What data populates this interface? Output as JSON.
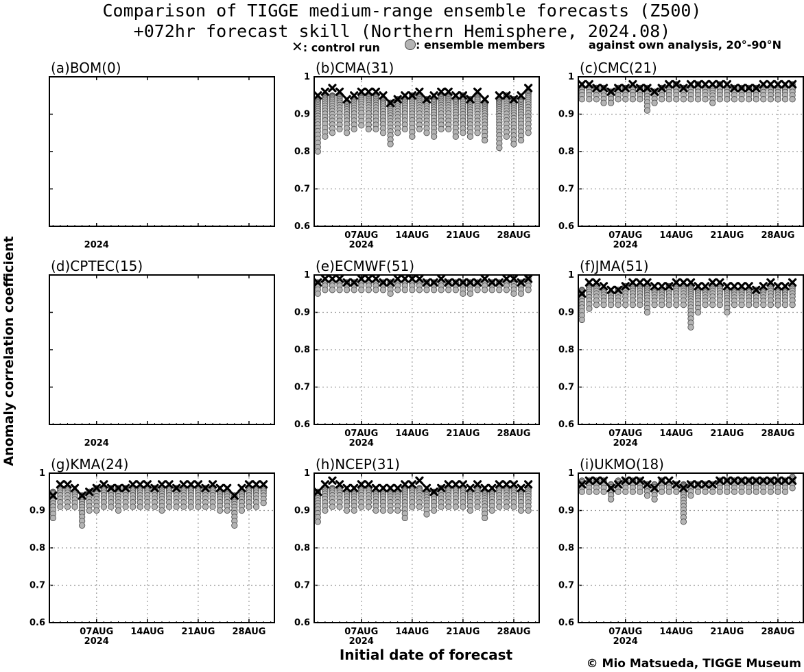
{
  "title_line1": "Comparison of TIGGE medium-range ensemble forecasts (Z500)",
  "title_line2": "+072hr forecast skill (Northern Hemisphere, 2024.08)",
  "legend": {
    "control_marker": "✕",
    "control_label": ": control run",
    "member_label": ": ensemble members"
  },
  "region_note": "against own analysis, 20°-90°N",
  "ylabel": "Anomaly correlation coefficient",
  "xlabel": "Initial date of forecast",
  "credit": "© Mio Matsueda, TIGGE Museum",
  "colors": {
    "member_fill": "#b4b4b4",
    "member_edge": "#555555",
    "control": "#000000",
    "grid": "#9a9a9a"
  },
  "chart_data": [
    {
      "type": "scatter",
      "title": "(a)BOM(0)",
      "ylim": [
        0.6,
        1.0
      ],
      "yticks": [
        "0.6",
        "0.7",
        "0.8",
        "0.9",
        "1"
      ],
      "xticks": [],
      "year_label": "2024",
      "control": [],
      "members": []
    },
    {
      "type": "scatter",
      "title": "(b)CMA(31)",
      "ylim": [
        0.6,
        1.0
      ],
      "yticks": [
        "0.6",
        "0.7",
        "0.8",
        "0.9",
        "1"
      ],
      "xticks": [
        "07AUG",
        "14AUG",
        "21AUG",
        "28AUG"
      ],
      "year_label": "2024",
      "control": [
        0.95,
        0.96,
        0.97,
        0.96,
        0.94,
        0.95,
        0.96,
        0.96,
        0.96,
        0.95,
        0.93,
        0.94,
        0.95,
        0.95,
        0.96,
        0.94,
        0.95,
        0.96,
        0.96,
        0.95,
        0.95,
        0.94,
        0.96,
        0.94,
        null,
        0.95,
        0.95,
        0.94,
        0.95,
        0.97
      ],
      "members": [
        [
          0.8,
          0.94
        ],
        [
          0.84,
          0.95
        ],
        [
          0.85,
          0.95
        ],
        [
          0.86,
          0.95
        ],
        [
          0.85,
          0.93
        ],
        [
          0.86,
          0.94
        ],
        [
          0.87,
          0.95
        ],
        [
          0.86,
          0.95
        ],
        [
          0.86,
          0.95
        ],
        [
          0.85,
          0.94
        ],
        [
          0.82,
          0.93
        ],
        [
          0.85,
          0.94
        ],
        [
          0.86,
          0.94
        ],
        [
          0.84,
          0.95
        ],
        [
          0.86,
          0.95
        ],
        [
          0.85,
          0.94
        ],
        [
          0.84,
          0.94
        ],
        [
          0.86,
          0.95
        ],
        [
          0.86,
          0.95
        ],
        [
          0.84,
          0.94
        ],
        [
          0.85,
          0.95
        ],
        [
          0.84,
          0.94
        ],
        [
          0.85,
          0.95
        ],
        [
          0.83,
          0.93
        ],
        null,
        [
          0.81,
          0.94
        ],
        [
          0.84,
          0.95
        ],
        [
          0.82,
          0.94
        ],
        [
          0.83,
          0.94
        ],
        [
          0.85,
          0.96
        ]
      ]
    },
    {
      "type": "scatter",
      "title": "(c)CMC(21)",
      "ylim": [
        0.6,
        1.0
      ],
      "yticks": [
        "0.6",
        "0.7",
        "0.8",
        "0.9",
        "1"
      ],
      "xticks": [
        "07AUG",
        "14AUG",
        "21AUG",
        "28AUG"
      ],
      "year_label": "2024",
      "control": [
        0.98,
        0.98,
        0.97,
        0.97,
        0.96,
        0.97,
        0.97,
        0.98,
        0.97,
        0.97,
        0.96,
        0.97,
        0.98,
        0.98,
        0.97,
        0.98,
        0.98,
        0.98,
        0.98,
        0.98,
        0.98,
        0.97,
        0.97,
        0.97,
        0.97,
        0.98,
        0.98,
        0.98,
        0.98,
        0.98
      ],
      "members": [
        [
          0.94,
          0.97
        ],
        [
          0.94,
          0.97
        ],
        [
          0.94,
          0.97
        ],
        [
          0.93,
          0.97
        ],
        [
          0.93,
          0.96
        ],
        [
          0.94,
          0.97
        ],
        [
          0.94,
          0.97
        ],
        [
          0.94,
          0.97
        ],
        [
          0.94,
          0.97
        ],
        [
          0.91,
          0.97
        ],
        [
          0.93,
          0.96
        ],
        [
          0.94,
          0.97
        ],
        [
          0.94,
          0.97
        ],
        [
          0.94,
          0.98
        ],
        [
          0.94,
          0.97
        ],
        [
          0.94,
          0.97
        ],
        [
          0.94,
          0.98
        ],
        [
          0.94,
          0.97
        ],
        [
          0.93,
          0.97
        ],
        [
          0.94,
          0.98
        ],
        [
          0.94,
          0.97
        ],
        [
          0.94,
          0.97
        ],
        [
          0.94,
          0.97
        ],
        [
          0.94,
          0.97
        ],
        [
          0.94,
          0.97
        ],
        [
          0.94,
          0.97
        ],
        [
          0.94,
          0.97
        ],
        [
          0.94,
          0.97
        ],
        [
          0.94,
          0.97
        ],
        [
          0.94,
          0.98
        ]
      ]
    },
    {
      "type": "scatter",
      "title": "(d)CPTEC(15)",
      "ylim": [
        0.6,
        1.0
      ],
      "yticks": [
        "0.6",
        "0.7",
        "0.8",
        "0.9",
        "1"
      ],
      "xticks": [],
      "year_label": "2024",
      "control": [],
      "members": []
    },
    {
      "type": "scatter",
      "title": "(e)ECMWF(51)",
      "ylim": [
        0.6,
        1.0
      ],
      "yticks": [
        "0.6",
        "0.7",
        "0.8",
        "0.9",
        "1"
      ],
      "xticks": [
        "07AUG",
        "14AUG",
        "21AUG",
        "28AUG"
      ],
      "year_label": "2024",
      "control": [
        0.98,
        0.99,
        0.99,
        0.99,
        0.98,
        0.98,
        0.99,
        0.99,
        0.99,
        0.98,
        0.98,
        0.99,
        0.99,
        0.99,
        0.99,
        0.98,
        0.98,
        0.99,
        0.98,
        0.98,
        0.98,
        0.98,
        0.98,
        0.99,
        0.98,
        0.98,
        0.99,
        0.99,
        0.98,
        0.99
      ],
      "members": [
        [
          0.95,
          0.98
        ],
        [
          0.96,
          0.98
        ],
        [
          0.96,
          0.98
        ],
        [
          0.96,
          0.98
        ],
        [
          0.96,
          0.98
        ],
        [
          0.96,
          0.98
        ],
        [
          0.96,
          0.98
        ],
        [
          0.96,
          0.98
        ],
        [
          0.96,
          0.98
        ],
        [
          0.96,
          0.98
        ],
        [
          0.95,
          0.98
        ],
        [
          0.96,
          0.98
        ],
        [
          0.96,
          0.98
        ],
        [
          0.96,
          0.98
        ],
        [
          0.96,
          0.98
        ],
        [
          0.96,
          0.98
        ],
        [
          0.96,
          0.98
        ],
        [
          0.96,
          0.98
        ],
        [
          0.96,
          0.98
        ],
        [
          0.96,
          0.98
        ],
        [
          0.95,
          0.98
        ],
        [
          0.95,
          0.98
        ],
        [
          0.96,
          0.98
        ],
        [
          0.96,
          0.98
        ],
        [
          0.96,
          0.98
        ],
        [
          0.96,
          0.98
        ],
        [
          0.96,
          0.98
        ],
        [
          0.95,
          0.98
        ],
        [
          0.95,
          0.98
        ],
        [
          0.96,
          0.99
        ]
      ]
    },
    {
      "type": "scatter",
      "title": "(f)JMA(51)",
      "ylim": [
        0.6,
        1.0
      ],
      "yticks": [
        "0.6",
        "0.7",
        "0.8",
        "0.9",
        "1"
      ],
      "xticks": [
        "07AUG",
        "14AUG",
        "21AUG",
        "28AUG"
      ],
      "year_label": "2024",
      "control": [
        0.95,
        0.98,
        0.98,
        0.97,
        0.96,
        0.96,
        0.97,
        0.98,
        0.98,
        0.98,
        0.97,
        0.97,
        0.97,
        0.98,
        0.98,
        0.98,
        0.97,
        0.97,
        0.98,
        0.98,
        0.97,
        0.97,
        0.97,
        0.97,
        0.96,
        0.97,
        0.98,
        0.97,
        0.97,
        0.98
      ],
      "members": [
        [
          0.88,
          0.96
        ],
        [
          0.91,
          0.97
        ],
        [
          0.92,
          0.97
        ],
        [
          0.92,
          0.96
        ],
        [
          0.92,
          0.95
        ],
        [
          0.92,
          0.96
        ],
        [
          0.92,
          0.97
        ],
        [
          0.92,
          0.97
        ],
        [
          0.92,
          0.97
        ],
        [
          0.9,
          0.97
        ],
        [
          0.92,
          0.96
        ],
        [
          0.92,
          0.96
        ],
        [
          0.92,
          0.97
        ],
        [
          0.92,
          0.97
        ],
        [
          0.92,
          0.97
        ],
        [
          0.86,
          0.97
        ],
        [
          0.9,
          0.96
        ],
        [
          0.92,
          0.96
        ],
        [
          0.92,
          0.97
        ],
        [
          0.92,
          0.97
        ],
        [
          0.9,
          0.96
        ],
        [
          0.92,
          0.96
        ],
        [
          0.92,
          0.96
        ],
        [
          0.92,
          0.96
        ],
        [
          0.92,
          0.96
        ],
        [
          0.92,
          0.96
        ],
        [
          0.92,
          0.97
        ],
        [
          0.92,
          0.96
        ],
        [
          0.92,
          0.96
        ],
        [
          0.92,
          0.97
        ]
      ]
    },
    {
      "type": "scatter",
      "title": "(g)KMA(24)",
      "ylim": [
        0.6,
        1.0
      ],
      "yticks": [
        "0.6",
        "0.7",
        "0.8",
        "0.9",
        "1"
      ],
      "xticks": [
        "07AUG",
        "14AUG",
        "21AUG",
        "28AUG"
      ],
      "year_label": "2024",
      "control": [
        0.94,
        0.97,
        0.97,
        0.96,
        0.94,
        0.95,
        0.96,
        0.97,
        0.96,
        0.96,
        0.96,
        0.97,
        0.97,
        0.97,
        0.96,
        0.97,
        0.97,
        0.96,
        0.97,
        0.97,
        0.97,
        0.96,
        0.97,
        0.96,
        0.96,
        0.94,
        0.96,
        0.97,
        0.97,
        0.97
      ],
      "members": [
        [
          0.88,
          0.95
        ],
        [
          0.91,
          0.96
        ],
        [
          0.91,
          0.96
        ],
        [
          0.91,
          0.95
        ],
        [
          0.86,
          0.94
        ],
        [
          0.9,
          0.95
        ],
        [
          0.9,
          0.96
        ],
        [
          0.91,
          0.96
        ],
        [
          0.91,
          0.96
        ],
        [
          0.9,
          0.96
        ],
        [
          0.91,
          0.96
        ],
        [
          0.91,
          0.96
        ],
        [
          0.91,
          0.96
        ],
        [
          0.91,
          0.96
        ],
        [
          0.91,
          0.96
        ],
        [
          0.9,
          0.96
        ],
        [
          0.91,
          0.96
        ],
        [
          0.91,
          0.96
        ],
        [
          0.91,
          0.96
        ],
        [
          0.91,
          0.96
        ],
        [
          0.91,
          0.96
        ],
        [
          0.91,
          0.96
        ],
        [
          0.91,
          0.96
        ],
        [
          0.9,
          0.95
        ],
        [
          0.9,
          0.95
        ],
        [
          0.86,
          0.94
        ],
        [
          0.9,
          0.95
        ],
        [
          0.91,
          0.96
        ],
        [
          0.91,
          0.96
        ],
        [
          0.92,
          0.96
        ]
      ]
    },
    {
      "type": "scatter",
      "title": "(h)NCEP(31)",
      "ylim": [
        0.6,
        1.0
      ],
      "yticks": [
        "0.6",
        "0.7",
        "0.8",
        "0.9",
        "1"
      ],
      "xticks": [
        "07AUG",
        "14AUG",
        "21AUG",
        "28AUG"
      ],
      "year_label": "2024",
      "control": [
        0.95,
        0.97,
        0.98,
        0.97,
        0.96,
        0.96,
        0.97,
        0.97,
        0.96,
        0.96,
        0.96,
        0.96,
        0.97,
        0.97,
        0.98,
        0.96,
        0.95,
        0.96,
        0.97,
        0.97,
        0.97,
        0.96,
        0.97,
        0.96,
        0.96,
        0.97,
        0.97,
        0.97,
        0.96,
        0.97
      ],
      "members": [
        [
          0.87,
          0.95
        ],
        [
          0.9,
          0.96
        ],
        [
          0.91,
          0.96
        ],
        [
          0.91,
          0.96
        ],
        [
          0.9,
          0.95
        ],
        [
          0.9,
          0.95
        ],
        [
          0.91,
          0.96
        ],
        [
          0.91,
          0.96
        ],
        [
          0.9,
          0.95
        ],
        [
          0.9,
          0.95
        ],
        [
          0.9,
          0.95
        ],
        [
          0.9,
          0.95
        ],
        [
          0.88,
          0.96
        ],
        [
          0.91,
          0.96
        ],
        [
          0.91,
          0.96
        ],
        [
          0.89,
          0.95
        ],
        [
          0.9,
          0.95
        ],
        [
          0.91,
          0.96
        ],
        [
          0.91,
          0.96
        ],
        [
          0.91,
          0.96
        ],
        [
          0.91,
          0.96
        ],
        [
          0.9,
          0.95
        ],
        [
          0.91,
          0.96
        ],
        [
          0.88,
          0.95
        ],
        [
          0.9,
          0.95
        ],
        [
          0.91,
          0.96
        ],
        [
          0.91,
          0.96
        ],
        [
          0.91,
          0.96
        ],
        [
          0.9,
          0.95
        ],
        [
          0.9,
          0.96
        ]
      ]
    },
    {
      "type": "scatter",
      "title": "(i)UKMO(18)",
      "ylim": [
        0.6,
        1.0
      ],
      "yticks": [
        "0.6",
        "0.7",
        "0.8",
        "0.9",
        "1"
      ],
      "xticks": [
        "07AUG",
        "14AUG",
        "21AUG",
        "28AUG"
      ],
      "year_label": "2024",
      "control": [
        0.97,
        0.98,
        0.98,
        0.98,
        0.96,
        0.97,
        0.98,
        0.98,
        0.98,
        0.97,
        0.96,
        0.98,
        0.98,
        0.97,
        0.96,
        0.97,
        0.97,
        0.97,
        0.97,
        0.98,
        0.98,
        0.98,
        0.98,
        0.98,
        0.98,
        0.98,
        0.98,
        0.98,
        0.98,
        0.98
      ],
      "members": [
        [
          0.95,
          0.98
        ],
        [
          0.95,
          0.98
        ],
        [
          0.95,
          0.98
        ],
        [
          0.95,
          0.98
        ],
        [
          0.93,
          0.97
        ],
        [
          0.95,
          0.98
        ],
        [
          0.95,
          0.98
        ],
        [
          0.95,
          0.98
        ],
        [
          0.95,
          0.98
        ],
        [
          0.94,
          0.97
        ],
        [
          0.93,
          0.97
        ],
        [
          0.95,
          0.98
        ],
        [
          0.95,
          0.97
        ],
        [
          0.95,
          0.97
        ],
        [
          0.87,
          0.97
        ],
        [
          0.94,
          0.97
        ],
        [
          0.95,
          0.97
        ],
        [
          0.95,
          0.97
        ],
        [
          0.95,
          0.97
        ],
        [
          0.95,
          0.98
        ],
        [
          0.95,
          0.98
        ],
        [
          0.95,
          0.98
        ],
        [
          0.95,
          0.98
        ],
        [
          0.95,
          0.98
        ],
        [
          0.95,
          0.98
        ],
        [
          0.95,
          0.98
        ],
        [
          0.95,
          0.98
        ],
        [
          0.95,
          0.98
        ],
        [
          0.95,
          0.98
        ],
        [
          0.96,
          0.99
        ]
      ]
    }
  ]
}
